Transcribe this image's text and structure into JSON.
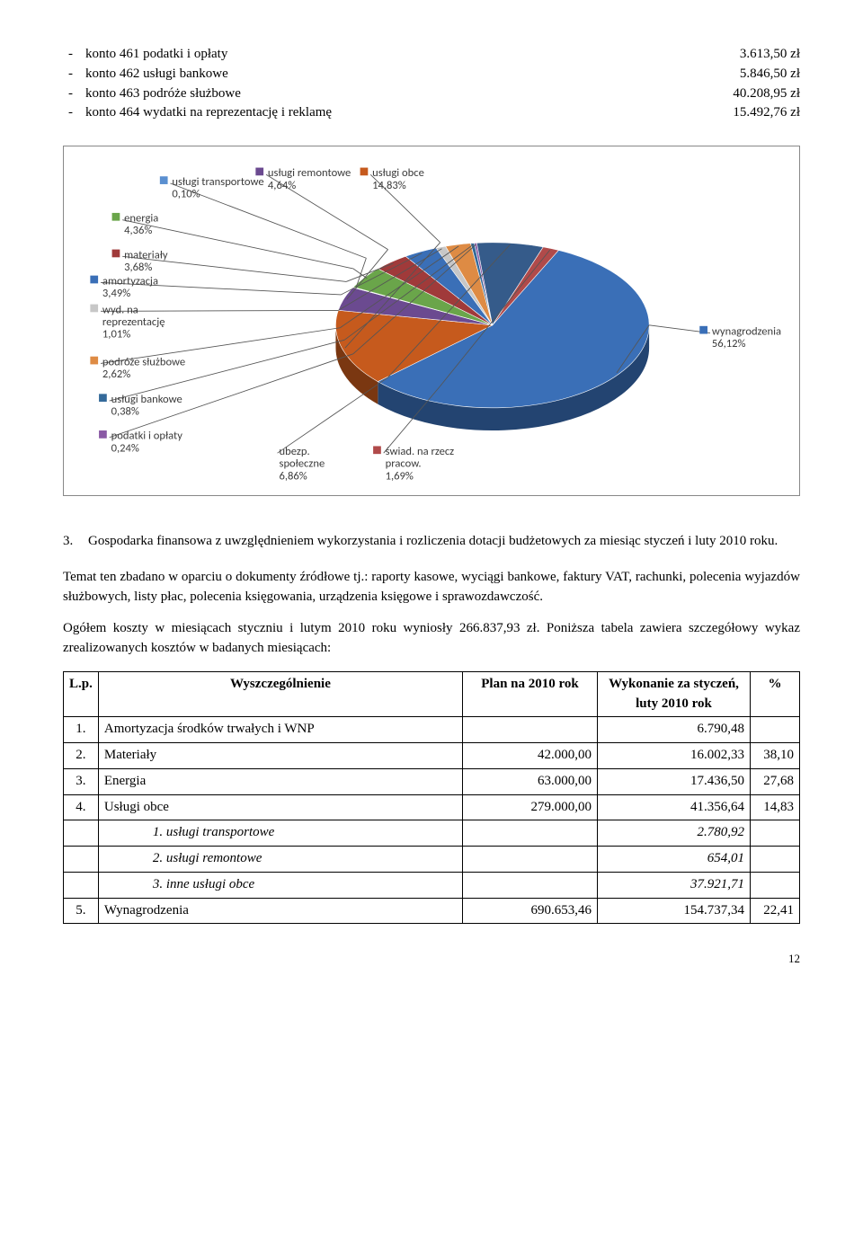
{
  "konto_items": [
    {
      "label": "konto 461 podatki i opłaty",
      "value": "3.613,50 zł"
    },
    {
      "label": "konto 462 usługi bankowe",
      "value": "5.846,50 zł"
    },
    {
      "label": "konto 463 podróże służbowe",
      "value": "40.208,95 zł"
    },
    {
      "label": "konto 464 wydatki na reprezentację i reklamę",
      "value": "15.492,76 zł"
    }
  ],
  "chart": {
    "type": "pie",
    "background_color": "#ffffff",
    "border_color": "#888888",
    "label_fontsize": 13,
    "label_color": "#3a3a3a",
    "slices": [
      {
        "name": "wynagrodzenia",
        "pct": 56.12,
        "color": "#3a6fb7",
        "label": "wynagrodzenia\n56,12%"
      },
      {
        "name": "usługi obce",
        "pct": 14.83,
        "color": "#c65a1d",
        "label": "usługi obce\n14,83%"
      },
      {
        "name": "usługi remontowe",
        "pct": 4.64,
        "color": "#6b4a90",
        "label": "usługi remontowe\n4,64%"
      },
      {
        "name": "usługi transportowe",
        "pct": 0.1,
        "color": "#5a8fd0",
        "label": "usługi transportowe\n0,10%"
      },
      {
        "name": "energia",
        "pct": 4.36,
        "color": "#6aa54a",
        "label": "energia\n4,36%"
      },
      {
        "name": "materiały",
        "pct": 3.68,
        "color": "#a03a3a",
        "label": "materiały\n3,68%"
      },
      {
        "name": "amortyzacja",
        "pct": 3.49,
        "color": "#3a6fb7",
        "label": "amortyzacja\n3,49%"
      },
      {
        "name": "wyd. na reprezentację",
        "pct": 1.01,
        "color": "#c7c7c7",
        "label": "wyd. na\nreprezentację\n1,01%"
      },
      {
        "name": "podróże służbowe",
        "pct": 2.62,
        "color": "#de8b44",
        "label": "podróże służbowe\n2,62%"
      },
      {
        "name": "usługi bankowe",
        "pct": 0.38,
        "color": "#346a9a",
        "label": "usługi bankowe\n0,38%"
      },
      {
        "name": "podatki i opłaty",
        "pct": 0.24,
        "color": "#8a5aa5",
        "label": "podatki i opłaty\n0,24%"
      },
      {
        "name": "ubezp. społeczne",
        "pct": 6.86,
        "color": "#355b8a",
        "label": "ubezp.\nspołeczne\n6,86%"
      },
      {
        "name": "świad. na rzecz pracow.",
        "pct": 1.69,
        "color": "#b04a4a",
        "label": "świad. na rzecz\npracow.\n1,69%"
      }
    ]
  },
  "section": {
    "num": "3.",
    "title": "Gospodarka finansowa z uwzględnieniem wykorzystania i rozliczenia dotacji budżetowych za miesiąc styczeń i luty 2010 roku."
  },
  "para1": "Temat ten zbadano w oparciu o dokumenty źródłowe tj.: raporty kasowe, wyciągi bankowe, faktury VAT, rachunki, polecenia wyjazdów służbowych, listy płac, polecenia księgowania, urządzenia księgowe i sprawozdawczość.",
  "para2": "Ogółem koszty w miesiącach styczniu i lutym 2010 roku wyniosły 266.837,93 zł. Poniższa tabela zawiera szczegółowy wykaz zrealizowanych kosztów w badanych miesiącach:",
  "table": {
    "headers": {
      "lp": "L.p.",
      "name": "Wyszczególnienie",
      "plan": "Plan na 2010 rok",
      "exec": "Wykonanie za styczeń, luty 2010 rok",
      "pct": "%"
    },
    "rows": [
      {
        "lp": "1.",
        "name": "Amortyzacja środków trwałych i WNP",
        "plan": "",
        "exec": "6.790,48",
        "pct": ""
      },
      {
        "lp": "2.",
        "name": "Materiały",
        "plan": "42.000,00",
        "exec": "16.002,33",
        "pct": "38,10"
      },
      {
        "lp": "3.",
        "name": "Energia",
        "plan": "63.000,00",
        "exec": "17.436,50",
        "pct": "27,68"
      },
      {
        "lp": "4.",
        "name": "Usługi obce",
        "plan": "279.000,00",
        "exec": "41.356,64",
        "pct": "14,83"
      },
      {
        "lp": "",
        "name": "1.   usługi transportowe",
        "plan": "",
        "exec": "2.780,92",
        "pct": "",
        "italic": true,
        "indent": true
      },
      {
        "lp": "",
        "name": "2.   usługi remontowe",
        "plan": "",
        "exec": "654,01",
        "pct": "",
        "italic": true,
        "indent": true
      },
      {
        "lp": "",
        "name": "3.   inne usługi obce",
        "plan": "",
        "exec": "37.921,71",
        "pct": "",
        "italic": true,
        "indent": true
      },
      {
        "lp": "5.",
        "name": "Wynagrodzenia",
        "plan": "690.653,46",
        "exec": "154.737,34",
        "pct": "22,41"
      }
    ]
  },
  "page_number": "12"
}
